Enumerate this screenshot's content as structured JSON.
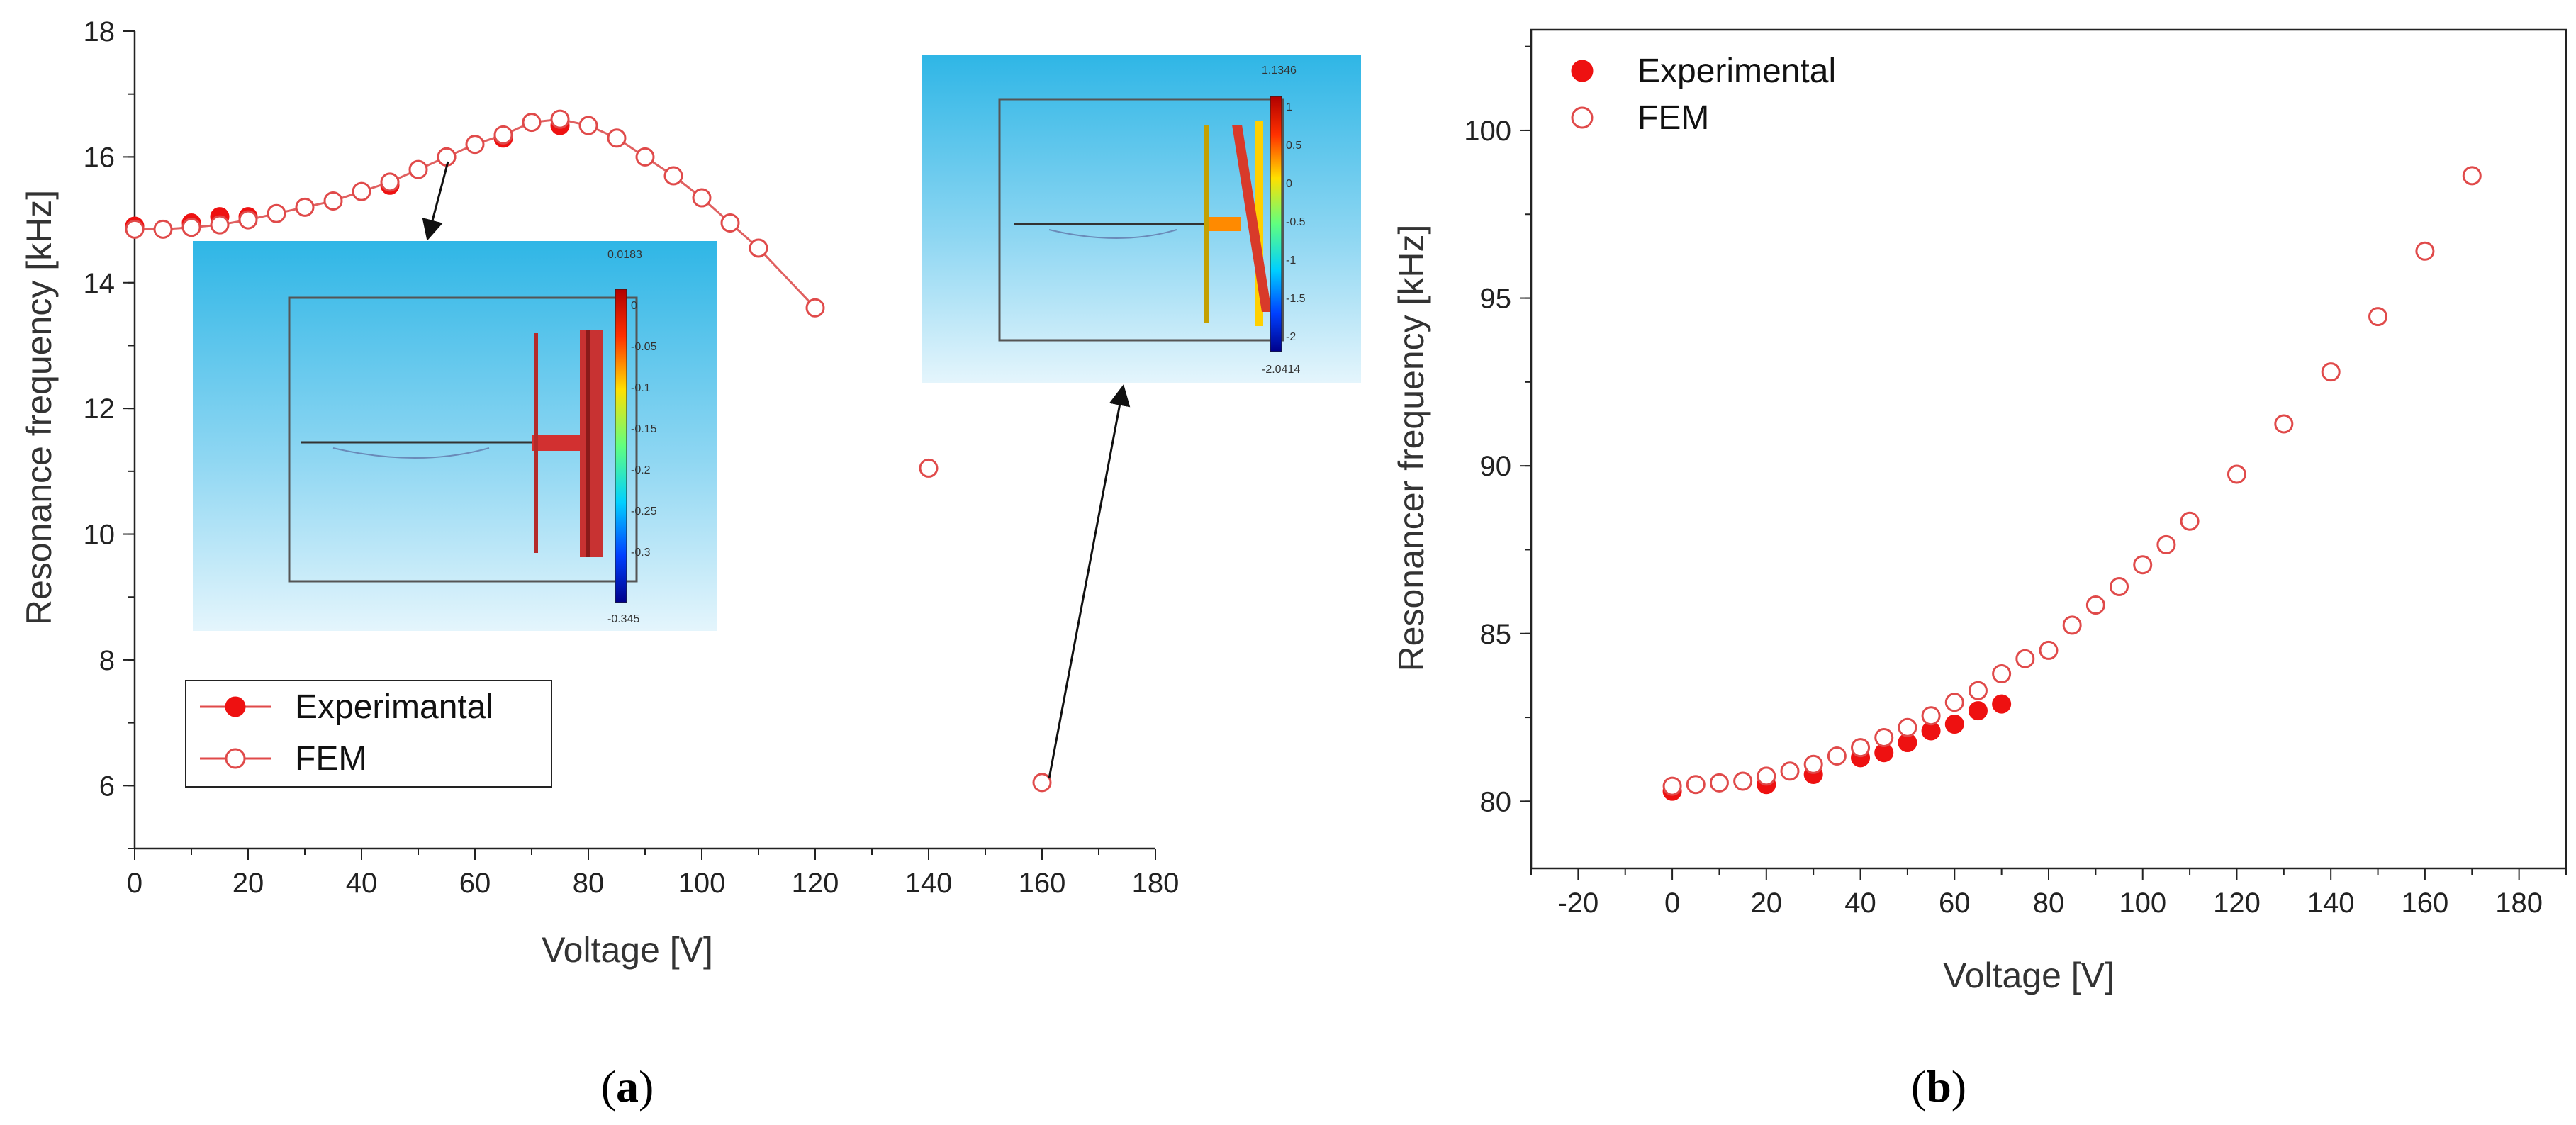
{
  "chart_data": [
    {
      "id": "a",
      "type": "line",
      "caption": "a",
      "xlabel": "Voltage [V]",
      "ylabel": "Resonance frequency [kHz]",
      "xlim": [
        0,
        180
      ],
      "ylim": [
        5,
        18
      ],
      "xticks": [
        "0",
        "20",
        "40",
        "60",
        "80",
        "100",
        "120",
        "140",
        "160",
        "180"
      ],
      "yticks": [
        "6",
        "8",
        "10",
        "12",
        "14",
        "16",
        "18"
      ],
      "legend": {
        "placement": "bottom-left",
        "entries": [
          "Experimantal",
          "FEM"
        ]
      },
      "series": [
        {
          "name": "Experimantal",
          "marker": "filled-circle",
          "x": [
            0,
            10,
            15,
            20,
            45,
            55,
            65,
            75
          ],
          "y": [
            14.9,
            14.95,
            15.05,
            15.05,
            15.55,
            16.0,
            16.3,
            16.5
          ]
        },
        {
          "name": "FEM",
          "marker": "open-circle-line",
          "x": [
            0,
            5,
            10,
            15,
            20,
            25,
            30,
            35,
            40,
            45,
            50,
            55,
            60,
            65,
            70,
            75,
            80,
            85,
            90,
            95,
            100,
            105,
            110,
            120,
            140,
            160
          ],
          "y": [
            14.85,
            14.85,
            14.88,
            14.92,
            15.0,
            15.1,
            15.2,
            15.3,
            15.45,
            15.6,
            15.8,
            16.0,
            16.2,
            16.35,
            16.55,
            16.6,
            16.5,
            16.3,
            16.0,
            15.7,
            15.35,
            14.95,
            14.55,
            13.6,
            11.05,
            6.05
          ]
        }
      ],
      "insets": [
        {
          "name": "fem-mode-shape-inset-1",
          "colorbar_max": "0.0183",
          "colorbar_min": "-0.345",
          "colorbar_ticks": [
            "0",
            "-0.05",
            "-0.1",
            "-0.15",
            "-0.2",
            "-0.25",
            "-0.3"
          ]
        },
        {
          "name": "fem-mode-shape-inset-2",
          "colorbar_max": "1.1346",
          "colorbar_min": "-2.0414",
          "colorbar_ticks": [
            "1",
            "0.5",
            "0",
            "-0.5",
            "-1",
            "-1.5",
            "-2"
          ]
        }
      ]
    },
    {
      "id": "b",
      "type": "scatter",
      "caption": "b",
      "xlabel": "Voltage [V]",
      "ylabel": "Resonancer frequency [kHz]",
      "xlim": [
        -30,
        190
      ],
      "ylim": [
        78,
        103
      ],
      "xticks": [
        "-20",
        "0",
        "20",
        "40",
        "60",
        "80",
        "100",
        "120",
        "140",
        "160",
        "180"
      ],
      "yticks": [
        "80",
        "85",
        "90",
        "95",
        "100"
      ],
      "legend": {
        "placement": "top-left",
        "entries": [
          "Experimental",
          "FEM"
        ]
      },
      "series": [
        {
          "name": "Experimental",
          "marker": "filled-circle",
          "x": [
            0,
            20,
            30,
            40,
            45,
            50,
            55,
            60,
            65,
            70
          ],
          "y": [
            80.3,
            80.5,
            80.8,
            81.3,
            81.45,
            81.75,
            82.1,
            82.3,
            82.7,
            82.9
          ]
        },
        {
          "name": "FEM",
          "marker": "open-circle",
          "x": [
            0,
            5,
            10,
            15,
            20,
            25,
            30,
            35,
            40,
            45,
            50,
            55,
            60,
            65,
            70,
            75,
            80,
            85,
            90,
            95,
            100,
            105,
            110,
            120,
            130,
            140,
            150,
            160,
            170
          ],
          "y": [
            80.45,
            80.5,
            80.55,
            80.6,
            80.75,
            80.9,
            81.1,
            81.35,
            81.6,
            81.9,
            82.2,
            82.55,
            82.95,
            83.3,
            83.8,
            84.25,
            84.5,
            85.25,
            85.85,
            86.4,
            87.05,
            87.65,
            88.35,
            89.75,
            91.25,
            92.8,
            94.45,
            96.4,
            98.65
          ]
        }
      ]
    }
  ]
}
